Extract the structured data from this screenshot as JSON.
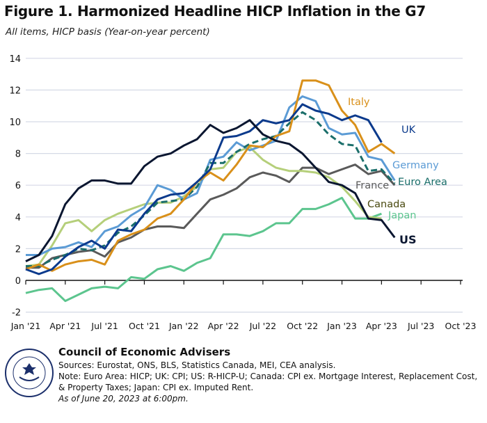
{
  "title": "Figure 1. Harmonized Headline HICP Inflation in the G7",
  "subtitle": "All items, HICP basis (Year-on-year percent)",
  "chart_data": {
    "type": "line",
    "title": "Figure 1. Harmonized Headline HICP Inflation in the G7",
    "ylim": [
      -2,
      14
    ],
    "yticks": [
      "-2",
      "0",
      "2",
      "4",
      "6",
      "8",
      "10",
      "12",
      "14"
    ],
    "xlim": [
      "2021-01",
      "2023-10"
    ],
    "xticks": [
      "Jan '21",
      "Apr '21",
      "Jul '21",
      "Oct '21",
      "Jan '22",
      "Apr '22",
      "Jul '22",
      "Oct '22",
      "Jan '23",
      "Apr '23",
      "Jul '23",
      "Oct '23"
    ],
    "grid": "horizontal",
    "legend": "inline labels at line ends",
    "start": "2021-01",
    "series": [
      {
        "name": "Italy",
        "color": "#d9901a",
        "values": [
          0.7,
          1.0,
          0.6,
          1.0,
          1.2,
          1.3,
          1.0,
          2.5,
          2.9,
          3.2,
          3.9,
          4.2,
          5.1,
          6.2,
          6.8,
          6.3,
          7.3,
          8.5,
          8.4,
          9.1,
          9.4,
          12.6,
          12.6,
          12.3,
          10.7,
          9.8,
          8.1,
          8.6,
          8.0
        ]
      },
      {
        "name": "UK",
        "color": "#0b3a8c",
        "values": [
          0.7,
          0.4,
          0.7,
          1.5,
          2.1,
          2.5,
          2.0,
          3.2,
          3.1,
          4.2,
          5.1,
          5.4,
          5.5,
          6.2,
          7.0,
          9.0,
          9.1,
          9.4,
          10.1,
          9.9,
          10.1,
          11.1,
          10.7,
          10.5,
          10.1,
          10.4,
          10.1,
          8.7
        ]
      },
      {
        "name": "Germany",
        "color": "#5b9bd5",
        "values": [
          1.6,
          1.6,
          2.0,
          2.1,
          2.4,
          2.1,
          3.1,
          3.4,
          4.1,
          4.6,
          6.0,
          5.7,
          5.1,
          5.5,
          7.6,
          7.8,
          8.7,
          8.2,
          8.5,
          8.8,
          10.9,
          11.6,
          11.3,
          9.6,
          9.2,
          9.3,
          7.8,
          7.6,
          6.3
        ]
      },
      {
        "name": "Euro Area",
        "color": "#1a6e6a",
        "dashed": true,
        "values": [
          0.9,
          0.9,
          1.3,
          1.6,
          2.0,
          1.9,
          2.2,
          3.0,
          3.4,
          4.1,
          4.9,
          5.0,
          5.1,
          5.9,
          7.4,
          7.4,
          8.1,
          8.6,
          8.9,
          9.1,
          9.9,
          10.6,
          10.1,
          9.2,
          8.6,
          8.5,
          6.9,
          7.0,
          6.1
        ]
      },
      {
        "name": "France",
        "color": "#5a5a5a",
        "values": [
          0.8,
          0.8,
          1.4,
          1.6,
          1.8,
          1.9,
          1.5,
          2.4,
          2.7,
          3.2,
          3.4,
          3.4,
          3.3,
          4.2,
          5.1,
          5.4,
          5.8,
          6.5,
          6.8,
          6.6,
          6.2,
          7.1,
          7.1,
          6.7,
          7.0,
          7.3,
          6.7,
          6.9,
          6.0
        ]
      },
      {
        "name": "Canada",
        "color": "#b5cf7a",
        "label_color": "#4a4a10",
        "values": [
          0.9,
          1.0,
          2.2,
          3.6,
          3.8,
          3.1,
          3.8,
          4.2,
          4.5,
          4.8,
          4.9,
          4.9,
          5.3,
          5.9,
          7.0,
          7.1,
          8.1,
          8.4,
          7.6,
          7.1,
          6.9,
          6.9,
          6.8,
          6.5,
          5.9,
          5.0,
          4.0,
          3.9
        ]
      },
      {
        "name": "Japan",
        "color": "#5cc58e",
        "values": [
          -0.8,
          -0.6,
          -0.5,
          -1.3,
          -0.9,
          -0.5,
          -0.4,
          -0.5,
          0.2,
          0.1,
          0.7,
          0.9,
          0.6,
          1.1,
          1.4,
          2.9,
          2.9,
          2.8,
          3.1,
          3.6,
          3.6,
          4.5,
          4.5,
          4.8,
          5.2,
          3.9,
          3.9,
          4.2
        ]
      },
      {
        "name": "US",
        "color": "#0a1630",
        "bold_label": true,
        "values": [
          1.2,
          1.6,
          2.8,
          4.8,
          5.8,
          6.3,
          6.3,
          6.1,
          6.1,
          7.2,
          7.8,
          8.0,
          8.5,
          8.9,
          9.8,
          9.3,
          9.6,
          10.1,
          9.2,
          8.8,
          8.6,
          8.0,
          7.1,
          6.2,
          6.0,
          5.5,
          3.9,
          3.8,
          2.7
        ]
      }
    ]
  },
  "footer": {
    "org": "Council of Economic Advisers",
    "sources": "Sources: Eurostat, ONS, BLS, Statistics Canada, MEI, CEA analysis.",
    "note": "Note: Euro Area: HICP; UK: CPI; US: R-HICP-U; Canada: CPI ex. Mortgage Interest, Replacement Cost, & Property Taxes; Japan: CPI ex. Imputed Rent.",
    "date": "As of June 20, 2023 at 6:00pm.",
    "seal_text": "EXECUTIVE OFFICE OF THE PRESIDENT OF THE UNITED STATES"
  }
}
